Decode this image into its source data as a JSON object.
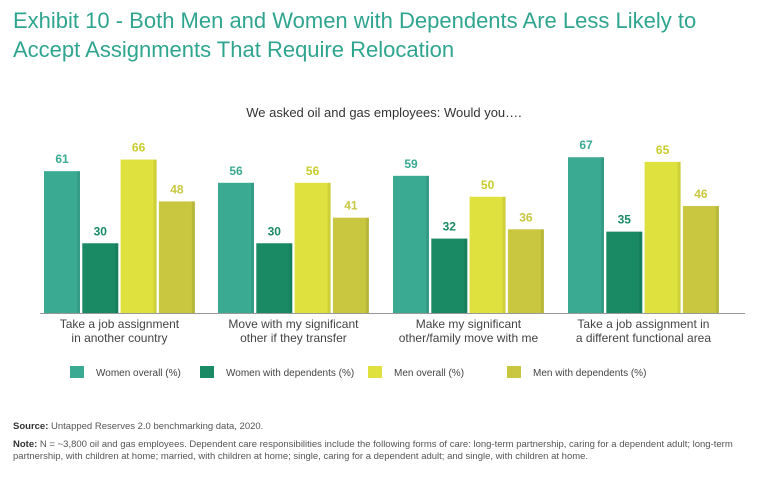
{
  "title": "Exhibit 10 - Both Men and Women with Dependents Are Less Likely to Accept Assignments That Require Relocation",
  "subtitle": "We asked oil and gas employees: Would you….",
  "colors": {
    "title": "#2fa58f",
    "women_overall": "#3aaa92",
    "women_dependents": "#1a8a64",
    "men_overall": "#dfe23e",
    "men_dependents": "#c8c73f"
  },
  "chart_data": {
    "type": "bar",
    "title": "We asked oil and gas employees: Would you….",
    "categories": [
      [
        "Take a job assignment",
        "in another country"
      ],
      [
        "Move with my significant",
        "other if they transfer"
      ],
      [
        "Make my significant",
        "other/family move with me"
      ],
      [
        "Take a job assignment in",
        "a different functional area"
      ]
    ],
    "series": [
      {
        "name": "Women overall (%)",
        "values": [
          61,
          56,
          59,
          67
        ]
      },
      {
        "name": "Women with dependents (%)",
        "values": [
          30,
          30,
          32,
          35
        ]
      },
      {
        "name": "Men overall (%)",
        "values": [
          66,
          56,
          50,
          65
        ]
      },
      {
        "name": "Men with dependents (%)",
        "values": [
          48,
          41,
          36,
          46
        ]
      }
    ],
    "xlabel": "",
    "ylabel": "",
    "ylim": [
      0,
      70
    ],
    "legend": "bottom",
    "grid": false
  },
  "footer": {
    "source_label": "Source:",
    "source_text": " Untapped Reserves 2.0 benchmarking data, 2020.",
    "note_label": "Note:",
    "note_text": " N = ~3,800 oil and gas employees. Dependent care responsibilities include the following forms of care: long-term partnership, caring for a dependent adult; long-term partnership, with children at home; married, with children at home; single, caring for a dependent adult; and single, with children at home."
  }
}
